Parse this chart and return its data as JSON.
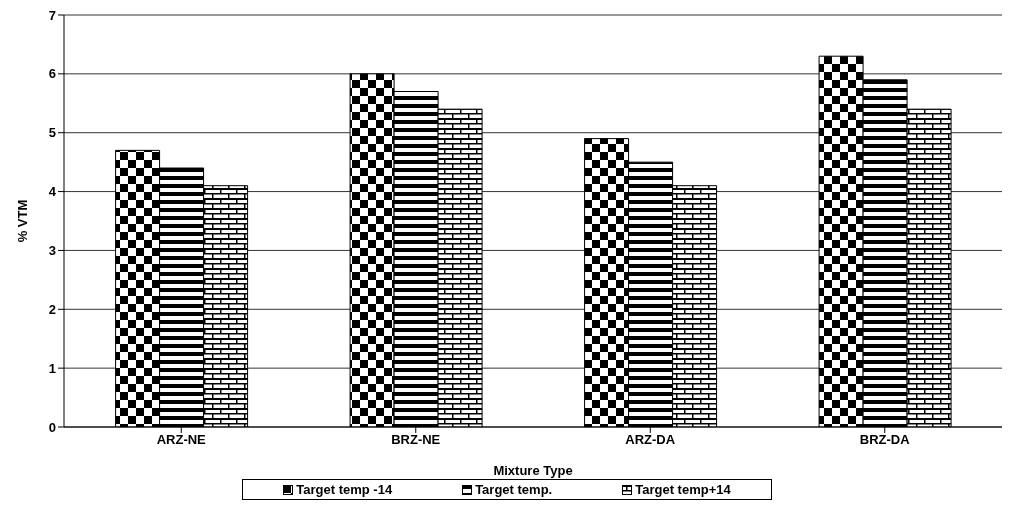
{
  "chart_data": {
    "type": "bar",
    "xlabel": "Mixture Type",
    "ylabel": "% VTM",
    "categories": [
      "ARZ-NE",
      "BRZ-NE",
      "ARZ-DA",
      "BRZ-DA"
    ],
    "series": [
      {
        "name": "Target temp -14",
        "color": "#000000",
        "values": [
          4.7,
          6.0,
          4.9,
          6.3
        ]
      },
      {
        "name": "Target temp.",
        "color": "#000000",
        "values": [
          4.4,
          5.7,
          4.5,
          5.9
        ]
      },
      {
        "name": "Target temp+14",
        "color": "#000000",
        "values": [
          4.1,
          5.4,
          4.1,
          5.4
        ]
      }
    ],
    "ylim": [
      0,
      7
    ],
    "yticks": [
      0,
      1,
      2,
      3,
      4,
      5,
      6,
      7
    ],
    "grid": "y",
    "legend": "bottom"
  }
}
